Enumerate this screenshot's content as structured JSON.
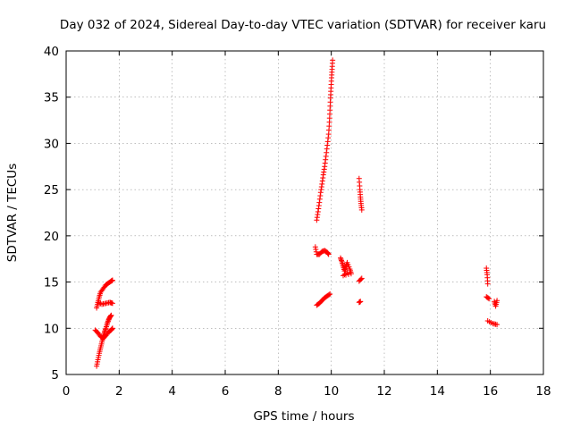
{
  "chart_data": {
    "type": "scatter",
    "title": "Day 032 of 2024, Sidereal Day-to-day VTEC variation (SDTVAR) for receiver karu",
    "xlabel": "GPS time / hours",
    "ylabel": "SDTVAR / TECUs",
    "xlim": [
      0,
      18
    ],
    "ylim": [
      5,
      40
    ],
    "xticks": [
      "0",
      "2",
      "4",
      "6",
      "8",
      "10",
      "12",
      "14",
      "16",
      "18"
    ],
    "yticks": [
      "5",
      "10",
      "15",
      "20",
      "25",
      "30",
      "35",
      "40"
    ],
    "grid": true,
    "marker": "+",
    "color": "#ff0000",
    "series": [
      {
        "name": "SDTVAR",
        "segments": [
          [
            [
              1.15,
              5.9
            ],
            [
              1.2,
              6.6
            ],
            [
              1.25,
              7.3
            ],
            [
              1.3,
              7.9
            ],
            [
              1.35,
              8.5
            ],
            [
              1.4,
              9.1
            ],
            [
              1.45,
              9.6
            ],
            [
              1.5,
              10.0
            ],
            [
              1.55,
              10.5
            ],
            [
              1.6,
              10.9
            ],
            [
              1.65,
              11.2
            ],
            [
              1.7,
              11.4
            ]
          ],
          [
            [
              1.1,
              9.8
            ],
            [
              1.2,
              9.5
            ],
            [
              1.3,
              9.1
            ],
            [
              1.4,
              8.9
            ],
            [
              1.5,
              9.2
            ],
            [
              1.6,
              9.6
            ],
            [
              1.7,
              9.8
            ],
            [
              1.75,
              10.0
            ]
          ],
          [
            [
              1.15,
              12.2
            ],
            [
              1.2,
              12.8
            ],
            [
              1.25,
              13.4
            ],
            [
              1.3,
              13.9
            ],
            [
              1.4,
              14.3
            ],
            [
              1.5,
              14.7
            ],
            [
              1.6,
              14.9
            ],
            [
              1.7,
              15.1
            ],
            [
              1.75,
              15.2
            ]
          ],
          [
            [
              1.2,
              12.8
            ],
            [
              1.35,
              12.6
            ],
            [
              1.5,
              12.7
            ],
            [
              1.65,
              12.8
            ],
            [
              1.75,
              12.7
            ]
          ],
          [
            [
              9.45,
              21.7
            ],
            [
              9.5,
              22.6
            ],
            [
              9.55,
              23.6
            ],
            [
              9.6,
              24.7
            ],
            [
              9.65,
              25.6
            ],
            [
              9.7,
              26.6
            ],
            [
              9.75,
              27.5
            ],
            [
              9.8,
              28.6
            ],
            [
              9.85,
              29.8
            ],
            [
              9.9,
              31.0
            ],
            [
              9.93,
              32.3
            ],
            [
              9.95,
              33.6
            ],
            [
              9.97,
              34.9
            ],
            [
              9.99,
              36.0
            ],
            [
              10.01,
              37.1
            ],
            [
              10.03,
              38.0
            ],
            [
              10.05,
              39.0
            ]
          ],
          [
            [
              9.45,
              12.5
            ],
            [
              9.55,
              12.7
            ],
            [
              9.65,
              13.0
            ],
            [
              9.75,
              13.3
            ],
            [
              9.85,
              13.5
            ],
            [
              9.95,
              13.7
            ]
          ],
          [
            [
              9.4,
              18.8
            ],
            [
              9.45,
              18.0
            ],
            [
              9.55,
              18.0
            ],
            [
              9.65,
              18.3
            ],
            [
              9.75,
              18.4
            ],
            [
              9.85,
              18.2
            ],
            [
              9.9,
              18.0
            ]
          ],
          [
            [
              10.35,
              17.6
            ],
            [
              10.4,
              17.2
            ],
            [
              10.45,
              16.7
            ],
            [
              10.5,
              16.2
            ],
            [
              10.55,
              16.6
            ],
            [
              10.6,
              17.1
            ],
            [
              10.7,
              16.4
            ],
            [
              10.75,
              15.9
            ],
            [
              10.45,
              15.7
            ],
            [
              10.6,
              16.0
            ]
          ],
          [
            [
              11.05,
              26.2
            ],
            [
              11.08,
              25.0
            ],
            [
              11.1,
              24.2
            ],
            [
              11.12,
              23.5
            ],
            [
              11.15,
              22.8
            ]
          ],
          [
            [
              11.05,
              15.1
            ],
            [
              11.15,
              15.4
            ]
          ],
          [
            [
              11.05,
              12.8
            ],
            [
              11.1,
              12.9
            ]
          ],
          [
            [
              15.85,
              16.5
            ],
            [
              15.88,
              15.8
            ],
            [
              15.9,
              14.8
            ]
          ],
          [
            [
              15.85,
              13.4
            ],
            [
              15.95,
              13.2
            ]
          ],
          [
            [
              16.15,
              12.9
            ],
            [
              16.2,
              12.4
            ],
            [
              16.25,
              13.0
            ]
          ],
          [
            [
              15.9,
              10.8
            ],
            [
              16.1,
              10.5
            ],
            [
              16.25,
              10.4
            ]
          ]
        ]
      }
    ]
  }
}
